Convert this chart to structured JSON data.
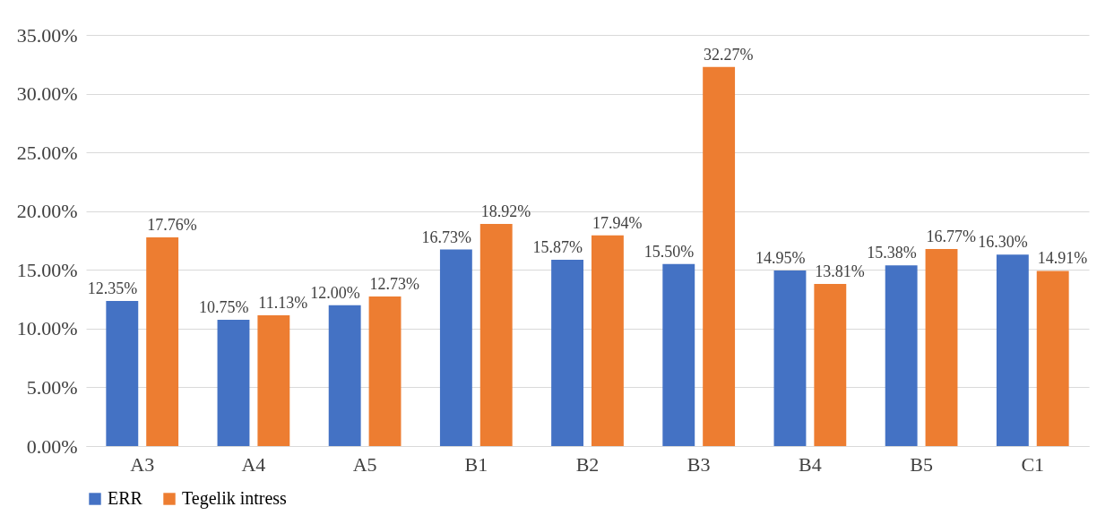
{
  "chart_data": {
    "type": "bar",
    "categories": [
      "A3",
      "A4",
      "A5",
      "B1",
      "B2",
      "B3",
      "B4",
      "B5",
      "C1"
    ],
    "series": [
      {
        "name": "ERR",
        "color": "#4472c4",
        "values": [
          12.35,
          10.75,
          12.0,
          16.73,
          15.87,
          15.5,
          14.95,
          15.38,
          16.3
        ],
        "value_labels": [
          "12.35%",
          "10.75%",
          "12.00%",
          "16.73%",
          "15.87%",
          "15.50%",
          "14.95%",
          "15.38%",
          "16.30%"
        ]
      },
      {
        "name": "Tegelik intress",
        "color": "#ed7d31",
        "values": [
          17.76,
          11.13,
          12.73,
          18.92,
          17.94,
          32.27,
          13.81,
          16.77,
          14.91
        ],
        "value_labels": [
          "17.76%",
          "11.13%",
          "12.73%",
          "18.92%",
          "17.94%",
          "32.27%",
          "13.81%",
          "16.77%",
          "14.91%"
        ]
      }
    ],
    "ylim": [
      0,
      35
    ],
    "yticks": [
      {
        "value": 0,
        "label": "0.00%"
      },
      {
        "value": 5,
        "label": "5.00%"
      },
      {
        "value": 10,
        "label": "10.00%"
      },
      {
        "value": 15,
        "label": "15.00%"
      },
      {
        "value": 20,
        "label": "20.00%"
      },
      {
        "value": 25,
        "label": "25.00%"
      },
      {
        "value": 30,
        "label": "30.00%"
      },
      {
        "value": 35,
        "label": "35.00%"
      }
    ],
    "grid": "y",
    "legend": "bottom"
  }
}
